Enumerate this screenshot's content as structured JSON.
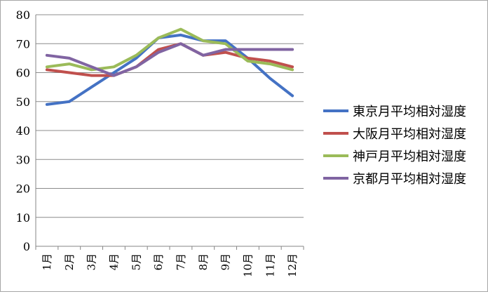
{
  "chart_data": {
    "type": "line",
    "title": "",
    "xlabel": "",
    "ylabel": "",
    "categories": [
      "1月",
      "2月",
      "3月",
      "4月",
      "5月",
      "6月",
      "7月",
      "8月",
      "9月",
      "10月",
      "11月",
      "12月"
    ],
    "ylim": [
      0,
      80
    ],
    "yticks": [
      0,
      10,
      20,
      30,
      40,
      50,
      60,
      70,
      80
    ],
    "grid": true,
    "legend": "right",
    "series": [
      {
        "name": "東京月平均相対湿度",
        "color": "#4472c4",
        "values": [
          49,
          50,
          55,
          60,
          65,
          72,
          73,
          71,
          71,
          65,
          58,
          52
        ]
      },
      {
        "name": "大阪月平均相対湿度",
        "color": "#c0504d",
        "values": [
          61,
          60,
          59,
          59,
          62,
          68,
          70,
          66,
          67,
          65,
          64,
          62
        ]
      },
      {
        "name": "神戸月平均相対湿度",
        "color": "#9bbb59",
        "values": [
          62,
          63,
          61,
          62,
          66,
          72,
          75,
          71,
          70,
          64,
          63,
          61
        ]
      },
      {
        "name": "京都月平均相対湿度",
        "color": "#8064a2",
        "values": [
          66,
          65,
          62,
          59,
          62,
          67,
          70,
          66,
          68,
          68,
          68,
          68
        ]
      }
    ]
  }
}
